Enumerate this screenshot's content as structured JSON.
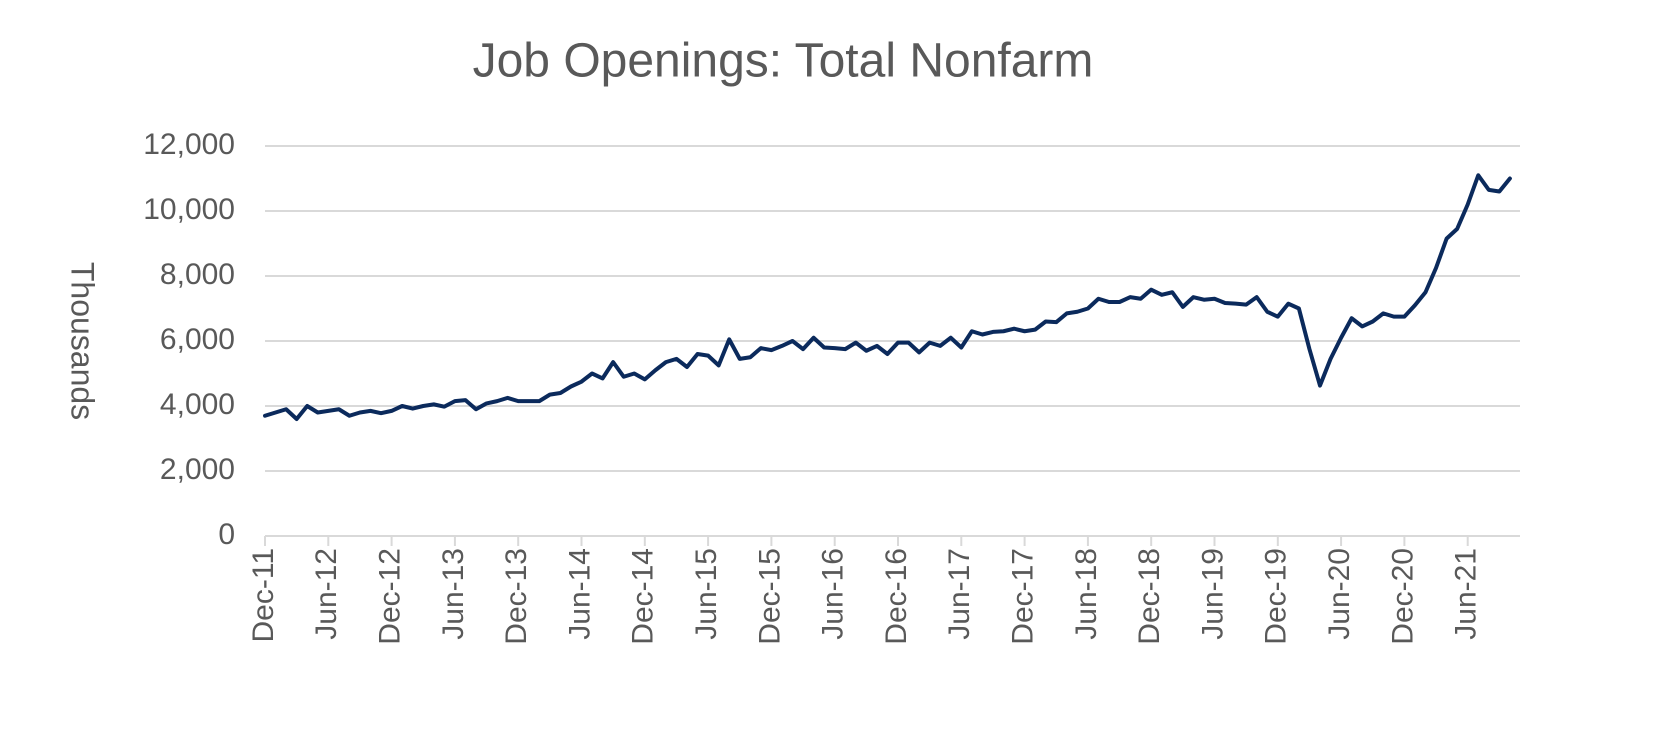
{
  "chart_data": {
    "type": "line",
    "title": "Job Openings: Total Nonfarm",
    "y_label": "Thousands",
    "categories": [
      "Dec-11",
      null,
      null,
      null,
      null,
      null,
      "Jun-12",
      null,
      null,
      null,
      null,
      null,
      "Dec-12",
      null,
      null,
      null,
      null,
      null,
      "Jun-13",
      null,
      null,
      null,
      null,
      null,
      "Dec-13",
      null,
      null,
      null,
      null,
      null,
      "Jun-14",
      null,
      null,
      null,
      null,
      null,
      "Dec-14",
      null,
      null,
      null,
      null,
      null,
      "Jun-15",
      null,
      null,
      null,
      null,
      null,
      "Dec-15",
      null,
      null,
      null,
      null,
      null,
      "Jun-16",
      null,
      null,
      null,
      null,
      null,
      "Dec-16",
      null,
      null,
      null,
      null,
      null,
      "Jun-17",
      null,
      null,
      null,
      null,
      null,
      "Dec-17",
      null,
      null,
      null,
      null,
      null,
      "Jun-18",
      null,
      null,
      null,
      null,
      null,
      "Dec-18",
      null,
      null,
      null,
      null,
      null,
      "Jun-19",
      null,
      null,
      null,
      null,
      null,
      "Dec-19",
      null,
      null,
      null,
      null,
      null,
      "Jun-20",
      null,
      null,
      null,
      null,
      null,
      "Dec-20",
      null,
      null,
      null,
      null,
      null,
      "Jun-21",
      null,
      null,
      null,
      null
    ],
    "series": [
      {
        "name": "Job Openings",
        "color": "#0b2a5c",
        "values": [
          3700,
          3800,
          3900,
          3600,
          4000,
          3800,
          3850,
          3900,
          3700,
          3800,
          3850,
          3780,
          3850,
          4000,
          3920,
          4000,
          4050,
          3980,
          4150,
          4180,
          3900,
          4080,
          4150,
          4250,
          4150,
          4150,
          4150,
          4350,
          4400,
          4600,
          4750,
          5000,
          4850,
          5350,
          4900,
          5000,
          4820,
          5100,
          5350,
          5450,
          5200,
          5600,
          5550,
          5250,
          6050,
          5450,
          5500,
          5780,
          5720,
          5850,
          6000,
          5750,
          6100,
          5800,
          5780,
          5750,
          5950,
          5700,
          5850,
          5600,
          5950,
          5950,
          5650,
          5950,
          5850,
          6100,
          5800,
          6300,
          6200,
          6280,
          6300,
          6380,
          6300,
          6350,
          6600,
          6580,
          6850,
          6900,
          7000,
          7300,
          7200,
          7200,
          7350,
          7300,
          7580,
          7420,
          7500,
          7050,
          7350,
          7270,
          7300,
          7170,
          7150,
          7120,
          7350,
          6900,
          6750,
          7150,
          7000,
          5750,
          4630,
          5450,
          6100,
          6700,
          6450,
          6600,
          6850,
          6750,
          6750,
          7100,
          7500,
          8250,
          9150,
          9450,
          10200,
          11100,
          10650,
          10600,
          11000
        ]
      }
    ],
    "ylim": [
      0,
      12000
    ],
    "yticks": [
      0,
      {
        "value": 2000,
        "label": "2,000"
      },
      {
        "value": 4000,
        "label": "4,000"
      },
      {
        "value": 6000,
        "label": "6,000"
      },
      {
        "value": 8000,
        "label": "8,000"
      },
      {
        "value": 10000,
        "label": "10,000"
      },
      {
        "value": 12000,
        "label": "12,000"
      }
    ],
    "grid": true
  }
}
